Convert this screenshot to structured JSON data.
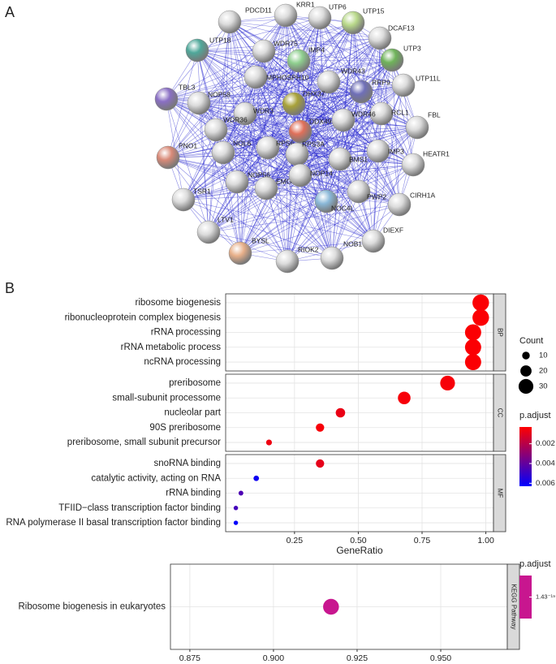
{
  "panel_labels": [
    "A",
    "B"
  ],
  "network": {
    "nodes": [
      "PDCD11",
      "KRR1",
      "UTP6",
      "UTP15",
      "DCAF13",
      "UTP3",
      "UTP11L",
      "FBL",
      "HEATR1",
      "CIRH1A",
      "DIEXF",
      "NOB1",
      "RIOK2",
      "BYSL",
      "LTV1",
      "TSR1",
      "PNO1",
      "TBL3",
      "UTP18",
      "WDR75",
      "IMP4",
      "MPHOSPH10",
      "WDR43",
      "RRP9",
      "NOP58",
      "WDR3",
      "DHX37",
      "RCL1",
      "WDR46",
      "WDR36",
      "DDX49",
      "NOL6",
      "RPS6",
      "RPS3A",
      "IMP3",
      "BMS1",
      "NOP56",
      "EMG1",
      "NOP14",
      "NOC4L",
      "PWP2"
    ]
  },
  "chart_data": [
    {
      "type": "dot",
      "xlabel": "GeneRatio",
      "xlim": [
        -0.02,
        1.03
      ],
      "xticks": [
        0.25,
        {
          "value": 0.5,
          "label": "0.50"
        },
        0.75,
        {
          "value": 1,
          "label": "1.00"
        }
      ],
      "facets": [
        {
          "label": "BP",
          "categories": [
            "ribosome biogenesis",
            "ribonucleoprotein complex biogenesis",
            "rRNA processing",
            "rRNA metabolic process",
            "ncRNA processing"
          ],
          "gene_ratio": [
            0.98,
            0.98,
            0.95,
            0.95,
            0.95
          ],
          "count": [
            35,
            35,
            34,
            34,
            34
          ],
          "p_adjust": [
            0.0004,
            0.0004,
            0.0004,
            0.0004,
            0.0004
          ]
        },
        {
          "label": "CC",
          "categories": [
            "preribosome",
            "small-subunit processome",
            "nucleolar part",
            "90S preribosome",
            "preribosome, small subunit precursor"
          ],
          "gene_ratio": [
            0.85,
            0.68,
            0.43,
            0.35,
            0.15
          ],
          "count": [
            30,
            24,
            15,
            12,
            5
          ],
          "p_adjust": [
            0.0005,
            0.0005,
            0.0008,
            0.0005,
            0.0007
          ]
        },
        {
          "label": "MF",
          "categories": [
            "snoRNA binding",
            "catalytic activity, acting on RNA",
            "rRNA binding",
            "TFIID−class transcription factor binding",
            "RNA polymerase II basal transcription factor binding"
          ],
          "gene_ratio": [
            0.35,
            0.1,
            0.04,
            0.02,
            0.02
          ],
          "count": [
            12,
            4,
            2,
            1,
            1
          ],
          "p_adjust": [
            0.0009,
            0.006,
            0.0045,
            0.0047,
            0.0062
          ]
        }
      ],
      "size_legend": {
        "title": "Count",
        "values": [
          10,
          20,
          30
        ]
      },
      "color_legend": {
        "title": "p.adjust",
        "lim": [
          0.0003,
          0.0063
        ],
        "ticks": [
          0.002,
          0.004,
          0.006
        ],
        "low_color": "#ff0000",
        "high_color": "#0000ff"
      }
    },
    {
      "type": "dot",
      "xlabel": "GeneRatio",
      "xlim": [
        0.8692,
        0.9699
      ],
      "xticks": [
        0.875,
        {
          "value": 0.9,
          "label": "0.900"
        },
        0.925,
        {
          "value": 0.95,
          "label": "0.950"
        }
      ],
      "facets": [
        {
          "label": "KEGG Pathway",
          "categories": [
            "Ribosome biogenesis in eukaryotes"
          ],
          "gene_ratio": [
            0.9172
          ],
          "count": [
            33
          ],
          "p_adjust": [
            1.43e-19
          ]
        }
      ],
      "color_legend": {
        "title": "p.adjust",
        "lim": [
          1.43e-19,
          1.43e-19
        ],
        "ticks": [
          {
            "value": 1.43e-19,
            "label": "1.43⁻¹⁹"
          }
        ],
        "low_color": "#c8168f",
        "high_color": "#c8168f"
      }
    }
  ]
}
